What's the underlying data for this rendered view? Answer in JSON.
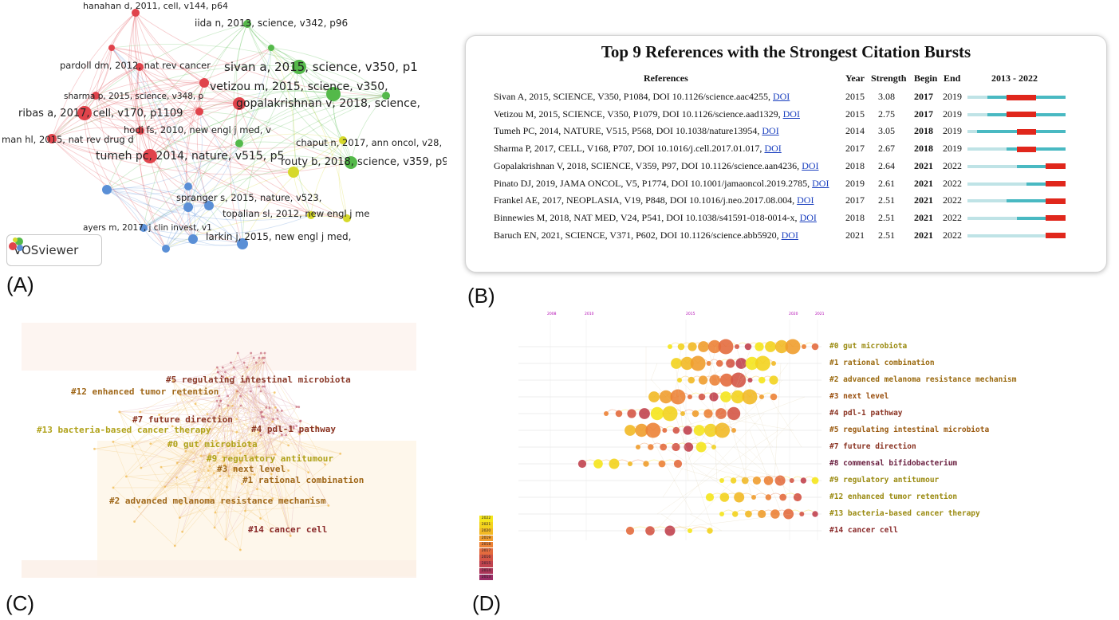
{
  "panel_labels": {
    "a": "(A)",
    "b": "(B)",
    "c": "(C)",
    "d": "(D)"
  },
  "panelA": {
    "badge": "VOSviewer",
    "labels": [
      "hanahan d, 2011, cell, v144, p64",
      "iida n, 2013, science, v342, p96",
      "pardoll dm, 2012, nat rev cancer",
      "sivan a, 2015, science, v350, p1",
      "vetizou m, 2015, science, v350,",
      "sharma p, 2015, science, v348, p",
      "gopalakrishnan v, 2018, science,",
      "ribas a, 2017, cell, v170, p1109",
      "hodi fs, 2010, new engl j med, v",
      "man hl, 2015, nat rev drug d",
      "chaput n, 2017, ann oncol, v28,",
      "tumeh pc, 2014, nature, v515, p5",
      "routy b, 2018, science, v359, p9",
      "spranger s, 2015, nature, v523,",
      "topalian sl, 2012, new engl j me",
      "ayers m, 2017, j clin invest, v1",
      "larkin j, 2015, new engl j med,"
    ],
    "cluster_colors": {
      "red": "#e0434b",
      "green": "#54b94a",
      "yellow": "#d6d92a",
      "blue": "#5a8fd6"
    }
  },
  "panelB": {
    "title": "Top 9 References with the Strongest Citation Bursts",
    "headers": {
      "references": "References",
      "year": "Year",
      "strength": "Strength",
      "begin": "Begin",
      "end": "End",
      "range": "2013 - 2022"
    },
    "doi_label": "DOI",
    "rows": [
      {
        "ref": "Sivan A, 2015, SCIENCE, V350, P1084, DOI 10.1126/science.aac4255,",
        "year": 2015,
        "strength": "3.08",
        "begin": 2017,
        "end": 2019
      },
      {
        "ref": "Vetizou M, 2015, SCIENCE, V350, P1079, DOI 10.1126/science.aad1329,",
        "year": 2015,
        "strength": "2.75",
        "begin": 2017,
        "end": 2019
      },
      {
        "ref": "Tumeh PC, 2014, NATURE, V515, P568, DOI 10.1038/nature13954,",
        "year": 2014,
        "strength": "3.05",
        "begin": 2018,
        "end": 2019
      },
      {
        "ref": "Sharma P, 2017, CELL, V168, P707, DOI 10.1016/j.cell.2017.01.017,",
        "year": 2017,
        "strength": "2.67",
        "begin": 2018,
        "end": 2019
      },
      {
        "ref": "Gopalakrishnan V, 2018, SCIENCE, V359, P97, DOI 10.1126/science.aan4236,",
        "year": 2018,
        "strength": "2.64",
        "begin": 2021,
        "end": 2022
      },
      {
        "ref": "Pinato DJ, 2019, JAMA ONCOL, V5, P1774, DOI 10.1001/jamaoncol.2019.2785,",
        "year": 2019,
        "strength": "2.61",
        "begin": 2021,
        "end": 2022
      },
      {
        "ref": "Frankel AE, 2017, NEOPLASIA, V19, P848, DOI 10.1016/j.neo.2017.08.004,",
        "year": 2017,
        "strength": "2.51",
        "begin": 2021,
        "end": 2022
      },
      {
        "ref": "Binnewies M, 2018, NAT MED, V24, P541, DOI 10.1038/s41591-018-0014-x,",
        "year": 2018,
        "strength": "2.51",
        "begin": 2021,
        "end": 2022
      },
      {
        "ref": "Baruch EN, 2021, SCIENCE, V371, P602, DOI 10.1126/science.abb5920,",
        "year": 2021,
        "strength": "2.51",
        "begin": 2021,
        "end": 2022
      }
    ],
    "colors": {
      "base": "#49b9c2",
      "burst": "#e0271c",
      "pre": "#bfe3e6"
    }
  },
  "panelC": {
    "clusters": [
      {
        "label": "#5 regulating intestinal microbiota",
        "color": "#8a3a2a"
      },
      {
        "label": "#12 enhanced tumor retention",
        "color": "#a0681a"
      },
      {
        "label": "#7 future direction",
        "color": "#8a3322"
      },
      {
        "label": "#13 bacteria-based cancer therapy",
        "color": "#b0a21a"
      },
      {
        "label": "#4 pdl-1 pathway",
        "color": "#8a3322"
      },
      {
        "label": "#0 gut microbiota",
        "color": "#b0a21a"
      },
      {
        "label": "#9 regulatory antitumour",
        "color": "#b0a21a"
      },
      {
        "label": "#3 next level",
        "color": "#a0681a"
      },
      {
        "label": "#1 rational combination",
        "color": "#a0681a"
      },
      {
        "label": "#2 advanced melanoma resistance mechanism",
        "color": "#a0681a"
      },
      {
        "label": "#14 cancer cell",
        "color": "#8a2a2a"
      }
    ]
  },
  "panelD": {
    "year_ticks": [
      "2008",
      "2010",
      "2015",
      "2020",
      "2021"
    ],
    "legend_years": [
      "2022",
      "2021",
      "2020",
      "2019",
      "2018",
      "2017",
      "2016",
      "2015",
      "2014",
      "2013"
    ],
    "legend_colors": [
      "#f5e61c",
      "#f3d31d",
      "#f2b925",
      "#f09d2e",
      "#ec8236",
      "#e36b3e",
      "#d45546",
      "#c1434f",
      "#ab3559",
      "#9a2d66"
    ],
    "clusters": [
      {
        "label": "#0 gut microbiota",
        "color": "#9a8a10"
      },
      {
        "label": "#1 rational combination",
        "color": "#9a6a10"
      },
      {
        "label": "#2 advanced melanoma resistance mechanism",
        "color": "#9a6a10"
      },
      {
        "label": "#3 next level",
        "color": "#9a5010"
      },
      {
        "label": "#4 pdl-1 pathway",
        "color": "#8a3322"
      },
      {
        "label": "#5 regulating intestinal microbiota",
        "color": "#9a5a10"
      },
      {
        "label": "#7 future direction",
        "color": "#8a3322"
      },
      {
        "label": "#8 commensal bifidobacterium",
        "color": "#6a2040"
      },
      {
        "label": "#9 regulatory antitumour",
        "color": "#9a8a10"
      },
      {
        "label": "#12 enhanced tumor retention",
        "color": "#9a8a10"
      },
      {
        "label": "#13 bacteria-based cancer therapy",
        "color": "#9a8a10"
      },
      {
        "label": "#14 cancer cell",
        "color": "#8a2a2a"
      }
    ]
  }
}
